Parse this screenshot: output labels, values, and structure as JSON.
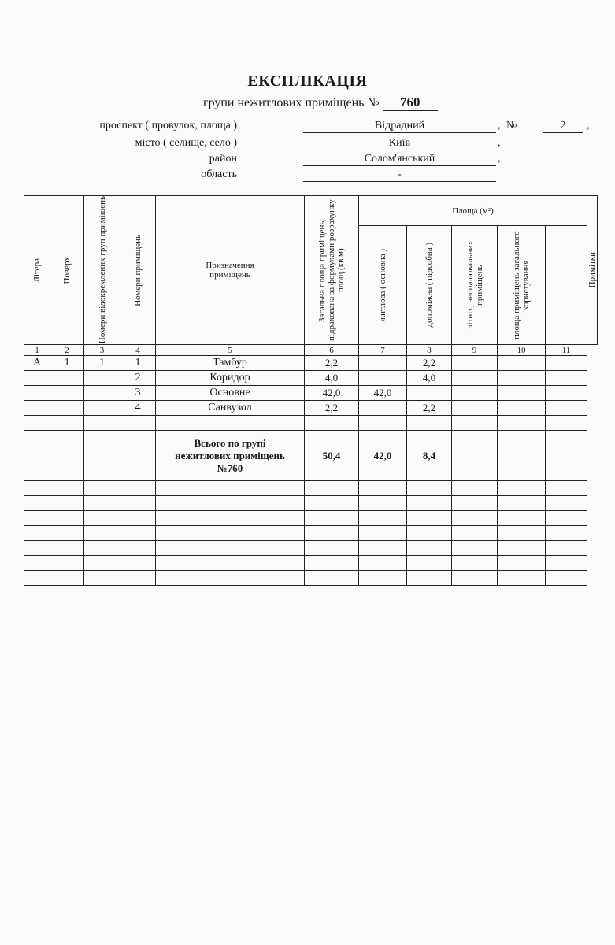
{
  "title": "ЕКСПЛІКАЦІЯ",
  "subtitle": "групи нежитлових приміщень №",
  "group_number": "760",
  "address": {
    "street_label": "проспект ( провулок, площа )",
    "street_value": "Відрадний",
    "number_label": "№",
    "number_value": "2",
    "city_label": "місто ( селище, село )",
    "city_value": "Київ",
    "district_label": "район",
    "district_value": "Солом'янський",
    "region_label": "область",
    "region_value": "-"
  },
  "table": {
    "headers": {
      "litera": "Літера",
      "floor": "Поверх",
      "groups": "Номери відокремлених груп приміщень",
      "rooms": "Номери приміщень",
      "purpose": "Призначення приміщень",
      "total_area": "Загальна площа приміщень, підрахована за формулами розрахунку площ (кв.м)",
      "area_group": "Площа (м²)",
      "living": "житлова ( основна )",
      "auxiliary": "допоміжна ( підсобна )",
      "summer": "літніх, неопалювальних приміщень",
      "common": "площа приміщень загального користування",
      "notes": "Примітки"
    },
    "column_numbers": [
      "1",
      "2",
      "3",
      "4",
      "5",
      "6",
      "7",
      "8",
      "9",
      "10",
      "11"
    ],
    "rows": [
      [
        "А",
        "1",
        "1",
        "1",
        "Тамбур",
        "2,2",
        "",
        "2,2",
        "",
        "",
        ""
      ],
      [
        "",
        "",
        "",
        "2",
        "Коридор",
        "4,0",
        "",
        "4,0",
        "",
        "",
        ""
      ],
      [
        "",
        "",
        "",
        "3",
        "Основне",
        "42,0",
        "42,0",
        "",
        "",
        "",
        ""
      ],
      [
        "",
        "",
        "",
        "4",
        "Санвузол",
        "2,2",
        "",
        "2,2",
        "",
        "",
        ""
      ],
      [
        "",
        "",
        "",
        "",
        "",
        "",
        "",
        "",
        "",
        "",
        ""
      ]
    ],
    "total": {
      "label": "Всього по групі нежитлових приміщень №760",
      "total_area": "50,4",
      "living": "42,0",
      "auxiliary": "8,4"
    }
  }
}
